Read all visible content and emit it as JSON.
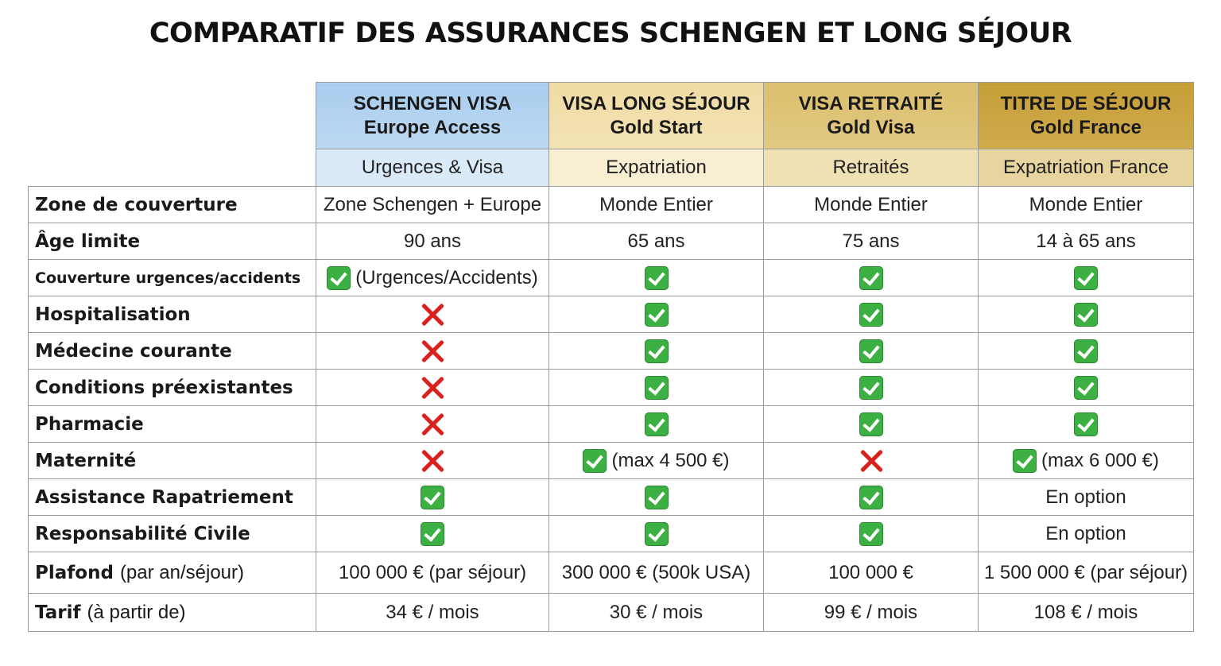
{
  "title": "COMPARATIF DES ASSURANCES SCHENGEN ET LONG SÉJOUR",
  "plans": [
    {
      "line1": "SCHENGEN VISA",
      "line2": "Europe Access",
      "sub": "Urgences & Visa",
      "color": "#a9cdee"
    },
    {
      "line1": "VISA LONG SÉJOUR",
      "line2": "Gold Start",
      "sub": "Expatriation",
      "color": "#efdba3"
    },
    {
      "line1": "VISA RETRAITÉ",
      "line2": "Gold Visa",
      "sub": "Retraités",
      "color": "#dbbf6e"
    },
    {
      "line1": "TITRE DE SÉJOUR",
      "line2": "Gold France",
      "sub": "Expatriation France",
      "color": "#c79f38"
    }
  ],
  "rows": [
    {
      "label": "Zone de couverture",
      "values": [
        "Zone Schengen + Europe",
        "Monde Entier",
        "Monde Entier",
        "Monde Entier"
      ]
    },
    {
      "label": "Âge limite",
      "values": [
        "90 ans",
        "65 ans",
        "75 ans",
        "14 à 65 ans"
      ]
    },
    {
      "label": "Couverture urgences/accidents",
      "values": [
        "(Urgences/Accidents)"
      ]
    },
    {
      "label": "Hospitalisation"
    },
    {
      "label": "Médecine courante"
    },
    {
      "label": "Conditions préexistantes"
    },
    {
      "label": "Pharmacie"
    },
    {
      "label": "Maternité",
      "values": [
        "",
        "(max 4 500 €)",
        "",
        "(max 6 000 €)"
      ]
    },
    {
      "label": "Assistance Rapatriement",
      "values": [
        "",
        "",
        "",
        "En option"
      ]
    },
    {
      "label": "Responsabilité Civile",
      "values": [
        "",
        "",
        "",
        "En option"
      ]
    },
    {
      "label": "Plafond",
      "label_suffix": "(par an/séjour)",
      "values": [
        "100 000 €",
        "300 000 €",
        "100 000 €",
        "1 500 000 €"
      ],
      "notes": [
        "(par séjour)",
        "(500k USA)",
        "",
        "(par séjour)"
      ]
    },
    {
      "label": "Tarif",
      "label_suffix": "(à partir de)",
      "values": [
        "34 € / mois",
        "30 € / mois",
        "99 € / mois",
        "108 € / mois"
      ]
    }
  ],
  "icons": {
    "yes": "check-icon",
    "no": "cross-icon",
    "yes_color": "#3cb043",
    "no_color": "#d9221e"
  }
}
